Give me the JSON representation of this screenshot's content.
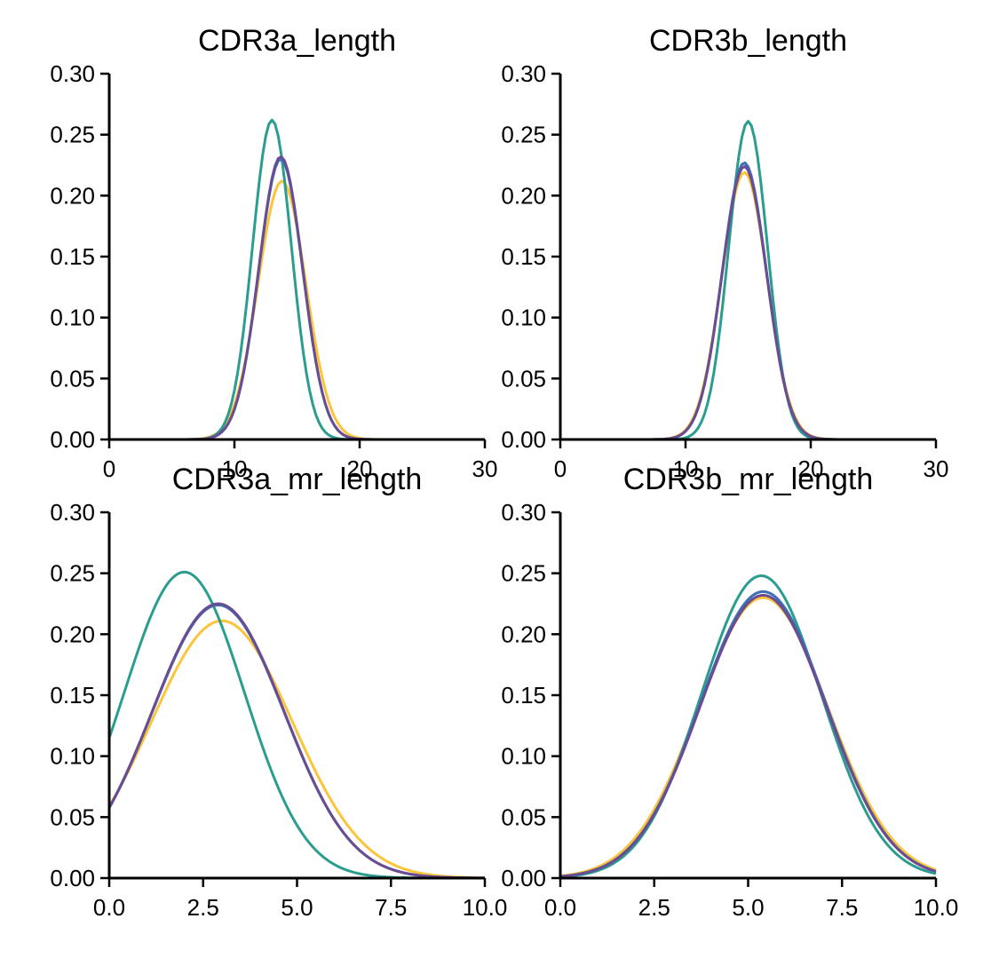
{
  "chart_data": [
    {
      "type": "line",
      "title": "CDR3a_length",
      "xlim": [
        0,
        30
      ],
      "ylim": [
        0,
        0.3
      ],
      "xticks": [
        "0",
        "10",
        "20",
        "30"
      ],
      "yticks": [
        "0.00",
        "0.05",
        "0.10",
        "0.15",
        "0.20",
        "0.25",
        "0.30"
      ],
      "series": [
        {
          "color": "#fcc43a",
          "mean": 13.8,
          "sd": 1.9,
          "peak": 0.212
        },
        {
          "color": "#2a9d8f",
          "mean": 13.0,
          "sd": 1.55,
          "peak": 0.262
        },
        {
          "color": "#3b6fb6",
          "mean": 13.7,
          "sd": 1.75,
          "peak": 0.23
        },
        {
          "color": "#6a4c93",
          "mean": 13.7,
          "sd": 1.75,
          "peak": 0.232
        }
      ]
    },
    {
      "type": "line",
      "title": "CDR3b_length",
      "xlim": [
        0,
        30
      ],
      "ylim": [
        0,
        0.3
      ],
      "xticks": [
        "0",
        "10",
        "20",
        "30"
      ],
      "yticks": [
        "0.00",
        "0.05",
        "0.10",
        "0.15",
        "0.20",
        "0.25",
        "0.30"
      ],
      "series": [
        {
          "color": "#fcc43a",
          "mean": 14.7,
          "sd": 1.82,
          "peak": 0.219
        },
        {
          "color": "#2a9d8f",
          "mean": 15.0,
          "sd": 1.55,
          "peak": 0.261
        },
        {
          "color": "#3b6fb6",
          "mean": 14.7,
          "sd": 1.77,
          "peak": 0.227
        },
        {
          "color": "#6a4c93",
          "mean": 14.7,
          "sd": 1.78,
          "peak": 0.224
        }
      ]
    },
    {
      "type": "line",
      "title": "CDR3a_mr_length",
      "xlim": [
        0,
        10
      ],
      "ylim": [
        0,
        0.3
      ],
      "xticks": [
        "0.0",
        "2.5",
        "5.0",
        "7.5",
        "10.0"
      ],
      "yticks": [
        "0.00",
        "0.05",
        "0.10",
        "0.15",
        "0.20",
        "0.25",
        "0.30"
      ],
      "series": [
        {
          "color": "#fcc43a",
          "mean": 3.0,
          "sd": 1.88,
          "peak": 0.211
        },
        {
          "color": "#2a9d8f",
          "mean": 2.0,
          "sd": 1.6,
          "peak": 0.251
        },
        {
          "color": "#3b6fb6",
          "mean": 2.9,
          "sd": 1.76,
          "peak": 0.224
        },
        {
          "color": "#6a4c93",
          "mean": 2.9,
          "sd": 1.76,
          "peak": 0.225
        }
      ]
    },
    {
      "type": "line",
      "title": "CDR3b_mr_length",
      "xlim": [
        0,
        10
      ],
      "ylim": [
        0,
        0.3
      ],
      "xticks": [
        "0.0",
        "2.5",
        "5.0",
        "7.5",
        "10.0"
      ],
      "yticks": [
        "0.00",
        "0.05",
        "0.10",
        "0.15",
        "0.20",
        "0.25",
        "0.30"
      ],
      "series": [
        {
          "color": "#fcc43a",
          "mean": 5.4,
          "sd": 1.73,
          "peak": 0.23
        },
        {
          "color": "#2a9d8f",
          "mean": 5.35,
          "sd": 1.6,
          "peak": 0.248
        },
        {
          "color": "#3b6fb6",
          "mean": 5.4,
          "sd": 1.68,
          "peak": 0.235
        },
        {
          "color": "#6a4c93",
          "mean": 5.4,
          "sd": 1.68,
          "peak": 0.232
        }
      ]
    }
  ]
}
